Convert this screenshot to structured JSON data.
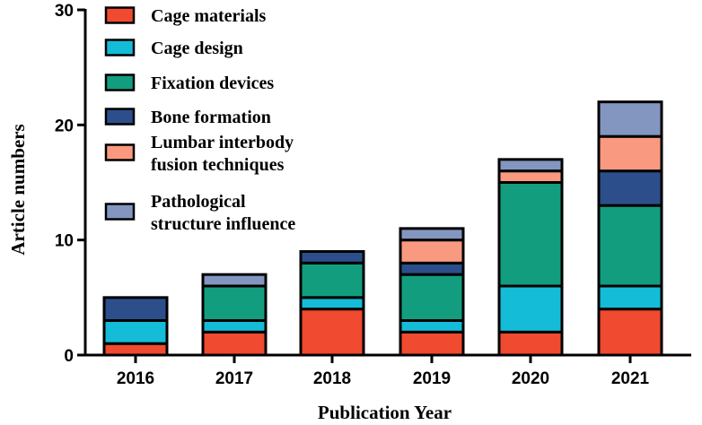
{
  "chart_data": {
    "type": "bar",
    "stacked": true,
    "title": "",
    "xlabel": "Publication Year",
    "ylabel": "Article numbers",
    "ylim": [
      0,
      30
    ],
    "yticks": [
      0,
      10,
      20,
      30
    ],
    "categories": [
      "2016",
      "2017",
      "2018",
      "2019",
      "2020",
      "2021"
    ],
    "legend_position": "top-left",
    "series": [
      {
        "name": "Cage materials",
        "color": "#f04a30",
        "values": [
          1,
          2,
          4,
          2,
          2,
          4
        ]
      },
      {
        "name": "Cage design",
        "color": "#14bcd8",
        "values": [
          2,
          1,
          1,
          1,
          4,
          2
        ]
      },
      {
        "name": "Fixation devices",
        "color": "#129e7e",
        "values": [
          0,
          3,
          3,
          4,
          9,
          7
        ]
      },
      {
        "name": "Bone formation",
        "color": "#2c4f8c",
        "values": [
          2,
          0,
          1,
          1,
          0,
          3
        ]
      },
      {
        "name": "Lumbar interbody\nfusion techniques",
        "color": "#f99a80",
        "values": [
          0,
          0,
          0,
          2,
          1,
          3
        ]
      },
      {
        "name": "Pathological\nstructure influence",
        "color": "#8396c0",
        "values": [
          0,
          1,
          0,
          1,
          1,
          3
        ]
      }
    ]
  }
}
